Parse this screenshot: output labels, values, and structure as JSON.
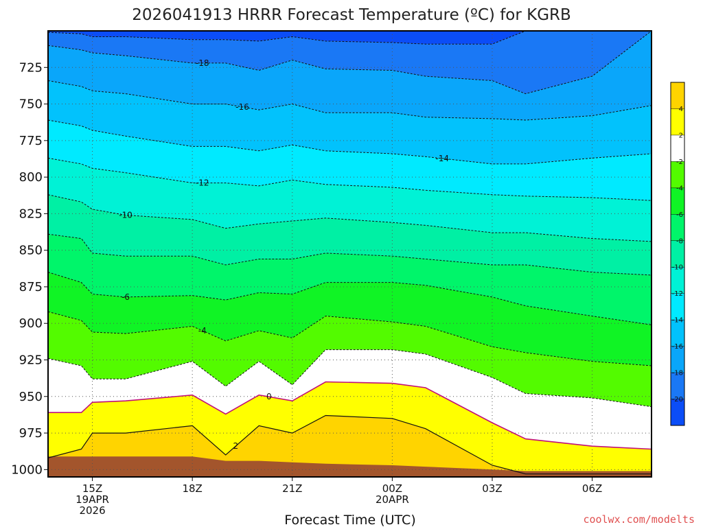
{
  "title": "2026041913 HRRR Forecast Temperature (ºC) for KGRB",
  "credit": "coolwx.com/modelts",
  "chart_data": {
    "type": "contour",
    "title": "2026041913 HRRR Forecast Temperature (ºC) for KGRB",
    "xlabel": "Forecast Time (UTC)",
    "ylabel": "",
    "xlim_hours_from_15Z": [
      -1.33,
      16.78
    ],
    "ylim_hPa": [
      1005,
      700
    ],
    "y_scale": "pressure (inverted)",
    "grid": true,
    "y_ticks": [
      "725",
      "750",
      "775",
      "800",
      "825",
      "850",
      "875",
      "900",
      "925",
      "950",
      "975",
      "1000"
    ],
    "y_tick_values": [
      725,
      750,
      775,
      800,
      825,
      850,
      875,
      900,
      925,
      950,
      975,
      1000
    ],
    "x_ticks": [
      {
        "line1": "15Z",
        "line2": "19APR",
        "line3": "2026",
        "hour": 0
      },
      {
        "line1": "18Z",
        "line2": "",
        "line3": "",
        "hour": 3
      },
      {
        "line1": "21Z",
        "line2": "",
        "line3": "",
        "hour": 6
      },
      {
        "line1": "00Z",
        "line2": "20APR",
        "line3": "",
        "hour": 9
      },
      {
        "line1": "03Z",
        "line2": "",
        "line3": "",
        "hour": 12
      },
      {
        "line1": "06Z",
        "line2": "",
        "line3": "",
        "hour": 15
      }
    ],
    "contour_hours": [
      -1.33,
      -0.33,
      0,
      1,
      3,
      4,
      5,
      6,
      7,
      9,
      10,
      12,
      13,
      15,
      16.78
    ],
    "isotherms": [
      {
        "level": -20,
        "label": "",
        "pressure": [
          701,
          702,
          704,
          704,
          706,
          706,
          707,
          704,
          707,
          708,
          709,
          709,
          700,
          700,
          700
        ]
      },
      {
        "level": -18,
        "label": "-18",
        "pressure": [
          710,
          713,
          715,
          717,
          722,
          722,
          727,
          720,
          726,
          727,
          731,
          734,
          743,
          731,
          700
        ]
      },
      {
        "level": -16,
        "label": "-16",
        "pressure": [
          734,
          738,
          741,
          743,
          750,
          750,
          754,
          750,
          756,
          756,
          759,
          760,
          761,
          758,
          751
        ]
      },
      {
        "level": -14,
        "label": "-14",
        "pressure": [
          761,
          765,
          768,
          772,
          779,
          779,
          782,
          778,
          782,
          784,
          786,
          791,
          791,
          787,
          784
        ]
      },
      {
        "level": -12,
        "label": "-12",
        "pressure": [
          787,
          791,
          794,
          797,
          804,
          804,
          806,
          802,
          805,
          807,
          809,
          812,
          813,
          814,
          816
        ]
      },
      {
        "level": -10,
        "label": "-10",
        "pressure": [
          812,
          817,
          822,
          826,
          829,
          835,
          832,
          830,
          828,
          831,
          833,
          838,
          838,
          842,
          844
        ]
      },
      {
        "level": -8,
        "label": "",
        "pressure": [
          839,
          842,
          852,
          854,
          854,
          860,
          856,
          856,
          852,
          854,
          856,
          860,
          860,
          865,
          867
        ]
      },
      {
        "level": -6,
        "label": "-6",
        "pressure": [
          865,
          872,
          880,
          882,
          881,
          884,
          879,
          880,
          872,
          872,
          874,
          882,
          888,
          895,
          901
        ]
      },
      {
        "level": -4,
        "label": "-4",
        "pressure": [
          892,
          898,
          906,
          907,
          902,
          912,
          905,
          910,
          895,
          899,
          902,
          916,
          920,
          926,
          929
        ]
      },
      {
        "level": -2,
        "label": "",
        "pressure": [
          924,
          929,
          938,
          938,
          926,
          943,
          926,
          942,
          918,
          918,
          921,
          937,
          948,
          951,
          957
        ]
      },
      {
        "level": 0,
        "label": "0",
        "pressure": [
          961,
          961,
          954,
          953,
          949,
          962,
          949,
          953,
          940,
          941,
          944,
          968,
          979,
          984,
          986
        ]
      },
      {
        "level": 2,
        "label": "2",
        "pressure": [
          992,
          986,
          975,
          975,
          970,
          990,
          970,
          975,
          963,
          965,
          972,
          997,
          1003,
          1003,
          1003
        ]
      }
    ],
    "surface_pressure_hPa": [
      991,
      991,
      991,
      991,
      991,
      994,
      994,
      995,
      996,
      997,
      998,
      1000,
      1001,
      1001,
      1001
    ],
    "fill_colors": [
      "#0b4df7",
      "#1a78f5",
      "#0aa6fa",
      "#02c2fc",
      "#00eaff",
      "#00f2d6",
      "#00f0a4",
      "#00f56a",
      "#10f425",
      "#53fb00",
      "#ffffff",
      "#ffff00",
      "#ffd400"
    ],
    "surface_color": "#a3552c",
    "zero_line_color": "#c01078",
    "colorbar": {
      "boundaries": [
        -20,
        -18,
        -16,
        -14,
        -12,
        -10,
        -8,
        -6,
        -4,
        -2,
        2,
        4
      ],
      "labels": [
        "-20",
        "-18",
        "-16",
        "-14",
        "-12",
        "-10",
        "-8",
        "-6",
        "-4",
        "-2",
        "2",
        "4"
      ],
      "colors": [
        "#0b4df7",
        "#1a78f5",
        "#0aa6fa",
        "#02c2fc",
        "#00eaff",
        "#00f2d6",
        "#00f0a4",
        "#00f56a",
        "#10f425",
        "#53fb00",
        "#ffffff",
        "#ffff00",
        "#ffd400"
      ]
    }
  }
}
